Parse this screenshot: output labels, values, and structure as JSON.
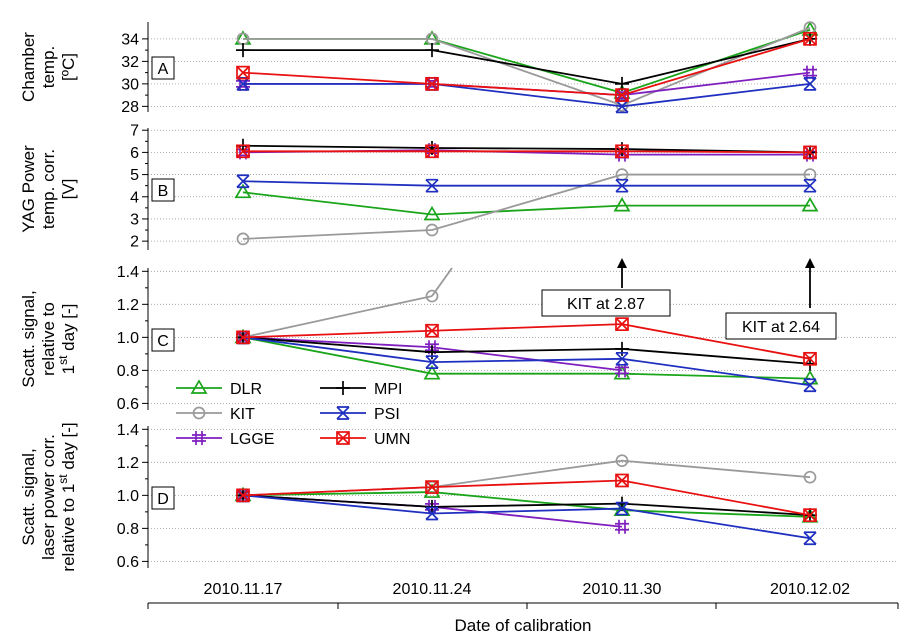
{
  "chart_data": {
    "type": "line",
    "x": [
      "2010.11.17",
      "2010.11.24",
      "2010.11.30",
      "2010.12.02"
    ],
    "xlabel": "Date of calibration",
    "series_colors": {
      "DLR": "#1aa51a",
      "KIT": "#9a9a9a",
      "LGGE": "#7f1fbf",
      "MPI": "#000000",
      "PSI": "#1f2fbf",
      "UMN": "#e81010"
    },
    "series_markers": {
      "DLR": "triangle",
      "KIT": "circle",
      "LGGE": "hash",
      "MPI": "plus",
      "PSI": "hourglass-x",
      "UMN": "boxed-x"
    },
    "legend": {
      "placement": "inside panel C, lower-left",
      "columns": [
        [
          "DLR",
          "KIT",
          "LGGE"
        ],
        [
          "MPI",
          "PSI",
          "UMN"
        ]
      ]
    },
    "panels": [
      {
        "id": "A",
        "ylabel": [
          "Chamber",
          "temp.",
          "[ºC]"
        ],
        "ylim": [
          27.5,
          35.5
        ],
        "yticks": [
          28,
          30,
          32,
          34
        ],
        "series": [
          {
            "name": "DLR",
            "values": [
              34,
              34,
              29.2,
              34.8
            ]
          },
          {
            "name": "KIT",
            "values": [
              34,
              34,
              28.1,
              35
            ]
          },
          {
            "name": "LGGE",
            "values": [
              30,
              30,
              29,
              31
            ]
          },
          {
            "name": "MPI",
            "values": [
              33,
              33,
              30,
              34
            ]
          },
          {
            "name": "PSI",
            "values": [
              30,
              30,
              28,
              30
            ]
          },
          {
            "name": "UMN",
            "values": [
              31,
              30,
              29,
              34
            ]
          }
        ]
      },
      {
        "id": "B",
        "ylabel": [
          "YAG Power",
          "temp. corr.",
          "[V]"
        ],
        "ylim": [
          1.6,
          7.1
        ],
        "yticks": [
          2,
          3,
          4,
          5,
          6,
          7
        ],
        "series": [
          {
            "name": "DLR",
            "values": [
              4.2,
              3.2,
              3.6,
              3.6
            ]
          },
          {
            "name": "KIT",
            "values": [
              2.1,
              2.5,
              5,
              5
            ]
          },
          {
            "name": "LGGE",
            "values": [
              6,
              6.1,
              5.9,
              5.9
            ]
          },
          {
            "name": "MPI",
            "values": [
              6.3,
              6.2,
              6.15,
              6
            ]
          },
          {
            "name": "PSI",
            "values": [
              4.7,
              4.5,
              4.5,
              4.5
            ]
          },
          {
            "name": "UMN",
            "values": [
              6.05,
              6.05,
              6.05,
              6
            ]
          }
        ]
      },
      {
        "id": "C",
        "ylabel": [
          "Scatt. signal,",
          "relative to",
          "1st day [-]"
        ],
        "ylim": [
          0.56,
          1.42
        ],
        "yticks": [
          "0.6",
          "0.8",
          "1.0",
          "1.2",
          "1.4"
        ],
        "series": [
          {
            "name": "DLR",
            "values": [
              1.0,
              0.78,
              0.78,
              0.75
            ]
          },
          {
            "name": "KIT",
            "values": [
              1.0,
              1.25,
              null,
              null
            ]
          },
          {
            "name": "LGGE",
            "values": [
              1.0,
              0.94,
              0.8,
              null
            ]
          },
          {
            "name": "MPI",
            "values": [
              1.0,
              0.91,
              0.93,
              0.84
            ]
          },
          {
            "name": "PSI",
            "values": [
              1.0,
              0.85,
              0.87,
              0.71
            ]
          },
          {
            "name": "UMN",
            "values": [
              1.0,
              1.04,
              1.08,
              0.87
            ]
          }
        ],
        "annotations": [
          {
            "text": "KIT at 2.87",
            "x": "2010.11.30"
          },
          {
            "text": "KIT at 2.64",
            "x": "2010.12.02"
          }
        ]
      },
      {
        "id": "D",
        "ylabel": [
          "Scatt. signal,",
          "laser power corr.",
          "relative to 1st day [-]"
        ],
        "ylim": [
          0.56,
          1.42
        ],
        "yticks": [
          "0.6",
          "0.8",
          "1.0",
          "1.2",
          "1.4"
        ],
        "series": [
          {
            "name": "DLR",
            "values": [
              1.0,
              1.02,
              0.91,
              0.87
            ]
          },
          {
            "name": "KIT",
            "values": [
              1.0,
              1.05,
              1.21,
              1.11
            ]
          },
          {
            "name": "LGGE",
            "values": [
              1.0,
              0.93,
              0.81,
              null
            ]
          },
          {
            "name": "MPI",
            "values": [
              1.0,
              0.93,
              0.95,
              0.88
            ]
          },
          {
            "name": "PSI",
            "values": [
              1.0,
              0.89,
              0.92,
              0.74
            ]
          },
          {
            "name": "UMN",
            "values": [
              1.0,
              1.05,
              1.09,
              0.88
            ]
          }
        ]
      }
    ]
  }
}
